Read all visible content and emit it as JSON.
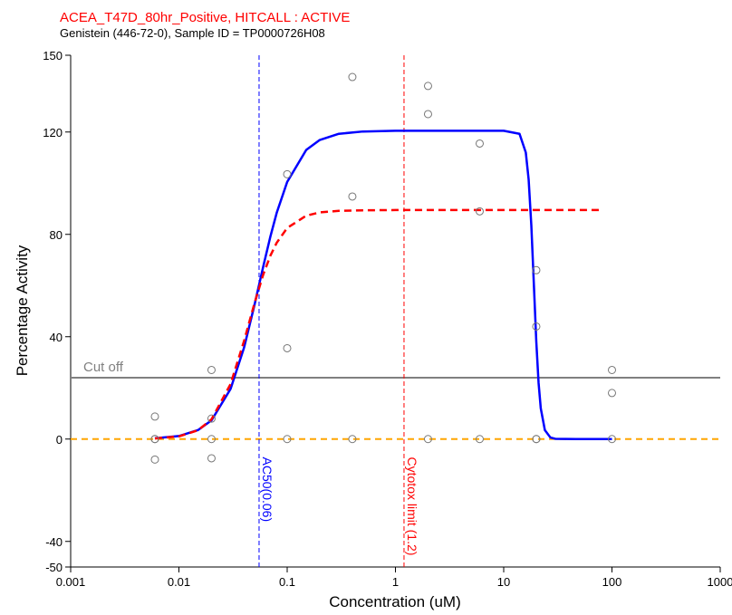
{
  "chart_data": {
    "type": "scatter",
    "title": "ACEA_T47D_80hr_Positive, HITCALL : ACTIVE",
    "title_color": "#ff0000",
    "subtitle": "Genistein (446-72-0), Sample ID = TP0000726H08",
    "x_label": "Concentration (uM)",
    "y_label": "Percentage Activity",
    "xlog": true,
    "xlim": [
      0.001,
      1000
    ],
    "xticks": [
      0.001,
      0.01,
      0.1,
      1,
      10,
      100,
      1000
    ],
    "ylim": [
      -50,
      150
    ],
    "yticks": [
      -50,
      -40,
      0,
      40,
      80,
      120,
      150
    ],
    "series": [
      {
        "mode": "markers",
        "color": "#777777",
        "x": [
          0.006,
          0.006,
          0.006,
          0.006,
          0.02,
          0.02,
          0.02,
          0.02,
          0.1,
          0.1,
          0.1,
          0.4,
          0.4,
          0.4,
          2,
          2,
          2,
          6,
          6,
          6,
          20,
          20,
          20,
          20,
          100,
          100,
          100
        ],
        "values": [
          8.8,
          0,
          0,
          -8,
          27,
          8,
          0,
          -7.5,
          103.5,
          35.5,
          0,
          141.5,
          94.8,
          0,
          138,
          127,
          0,
          115.5,
          89,
          0,
          66,
          44,
          0,
          0,
          27,
          18,
          0
        ]
      },
      {
        "mode": "line",
        "color": "#0000ff",
        "dash": false,
        "x": [
          0.006,
          0.01,
          0.015,
          0.02,
          0.03,
          0.04,
          0.05,
          0.06,
          0.07,
          0.08,
          0.1,
          0.15,
          0.2,
          0.3,
          0.5,
          1,
          2,
          5,
          10,
          14,
          16,
          17,
          18,
          19,
          20,
          21,
          22,
          24,
          27,
          30,
          50,
          100
        ],
        "values": [
          0.3,
          1.19,
          3.5,
          7.3,
          19.6,
          35.8,
          52.6,
          67.3,
          79.2,
          88.4,
          100.5,
          113,
          116.9,
          119.3,
          120.2,
          120.5,
          120.5,
          120.5,
          120.5,
          119.3,
          112,
          101.4,
          83.4,
          60.3,
          38.1,
          21.9,
          12,
          3.5,
          0.6,
          0.1,
          0,
          0
        ]
      },
      {
        "mode": "line",
        "color": "#ff0000",
        "dash": true,
        "x": [
          0.006,
          0.01,
          0.015,
          0.02,
          0.03,
          0.04,
          0.05,
          0.06,
          0.07,
          0.08,
          0.1,
          0.15,
          0.2,
          0.3,
          0.5,
          1,
          2,
          5,
          10,
          20,
          50,
          80
        ],
        "values": [
          0.23,
          1.04,
          3.42,
          7.7,
          21.5,
          38.4,
          53.2,
          64.2,
          71.7,
          76.7,
          82.5,
          87.3,
          88.6,
          89.2,
          89.4,
          89.5,
          89.5,
          89.5,
          89.5,
          89.5,
          89.5,
          89.5
        ]
      }
    ],
    "hlines": [
      {
        "y": 0,
        "color": "#ffa500",
        "dash": true
      },
      {
        "y": 24,
        "color": "#808080",
        "dash": false,
        "label": "Cut off"
      }
    ],
    "vlines": [
      {
        "x": 0.055,
        "color": "#0000ff",
        "label": "AC50(0.06)"
      },
      {
        "x": 1.2,
        "color": "#ff0000",
        "label": "Cytotox limit (1.2)"
      }
    ]
  }
}
